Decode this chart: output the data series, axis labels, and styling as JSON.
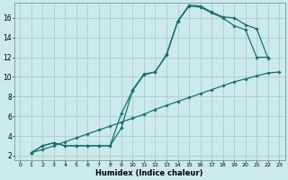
{
  "xlabel": "Humidex (Indice chaleur)",
  "bg_color": "#cceaea",
  "grid_color": "#aacccc",
  "line_color": "#1a7070",
  "xlim": [
    -0.5,
    23.5
  ],
  "ylim": [
    1.5,
    17.5
  ],
  "xticks": [
    0,
    1,
    2,
    3,
    4,
    5,
    6,
    7,
    8,
    9,
    10,
    11,
    12,
    13,
    14,
    15,
    16,
    17,
    18,
    19,
    20,
    21,
    22,
    23
  ],
  "yticks": [
    2,
    4,
    6,
    8,
    10,
    12,
    14,
    16
  ],
  "line1_x": [
    1,
    2,
    3,
    4,
    5,
    6,
    7,
    8,
    9,
    10,
    11,
    12,
    13,
    14,
    15,
    16,
    17,
    18,
    19,
    20,
    21,
    22,
    23
  ],
  "line1_y": [
    2.3,
    2.6,
    3.0,
    3.4,
    3.8,
    4.2,
    4.6,
    5.0,
    5.4,
    5.8,
    6.2,
    6.7,
    7.1,
    7.5,
    7.9,
    8.3,
    8.7,
    9.1,
    9.5,
    9.8,
    10.1,
    10.4,
    10.5
  ],
  "line2_x": [
    1,
    2,
    3,
    4,
    5,
    6,
    7,
    8,
    9,
    10,
    11,
    12,
    13,
    14,
    15,
    16,
    17,
    18,
    19,
    20,
    21,
    22
  ],
  "line2_y": [
    2.3,
    3.0,
    3.3,
    3.0,
    3.0,
    3.0,
    3.0,
    3.0,
    4.8,
    8.7,
    10.3,
    10.5,
    12.2,
    15.6,
    17.2,
    17.1,
    16.5,
    16.0,
    15.2,
    14.8,
    12.0,
    12.0
  ],
  "line3_x": [
    1,
    2,
    3,
    4,
    5,
    6,
    7,
    8,
    9,
    10,
    11,
    12,
    13,
    14,
    15,
    16,
    17,
    18,
    19,
    20,
    21,
    22
  ],
  "line3_y": [
    2.3,
    3.0,
    3.3,
    3.0,
    3.0,
    3.0,
    3.0,
    3.0,
    6.3,
    8.6,
    10.2,
    10.5,
    12.3,
    15.7,
    17.3,
    17.2,
    16.6,
    16.1,
    16.0,
    15.3,
    14.9,
    11.9
  ]
}
